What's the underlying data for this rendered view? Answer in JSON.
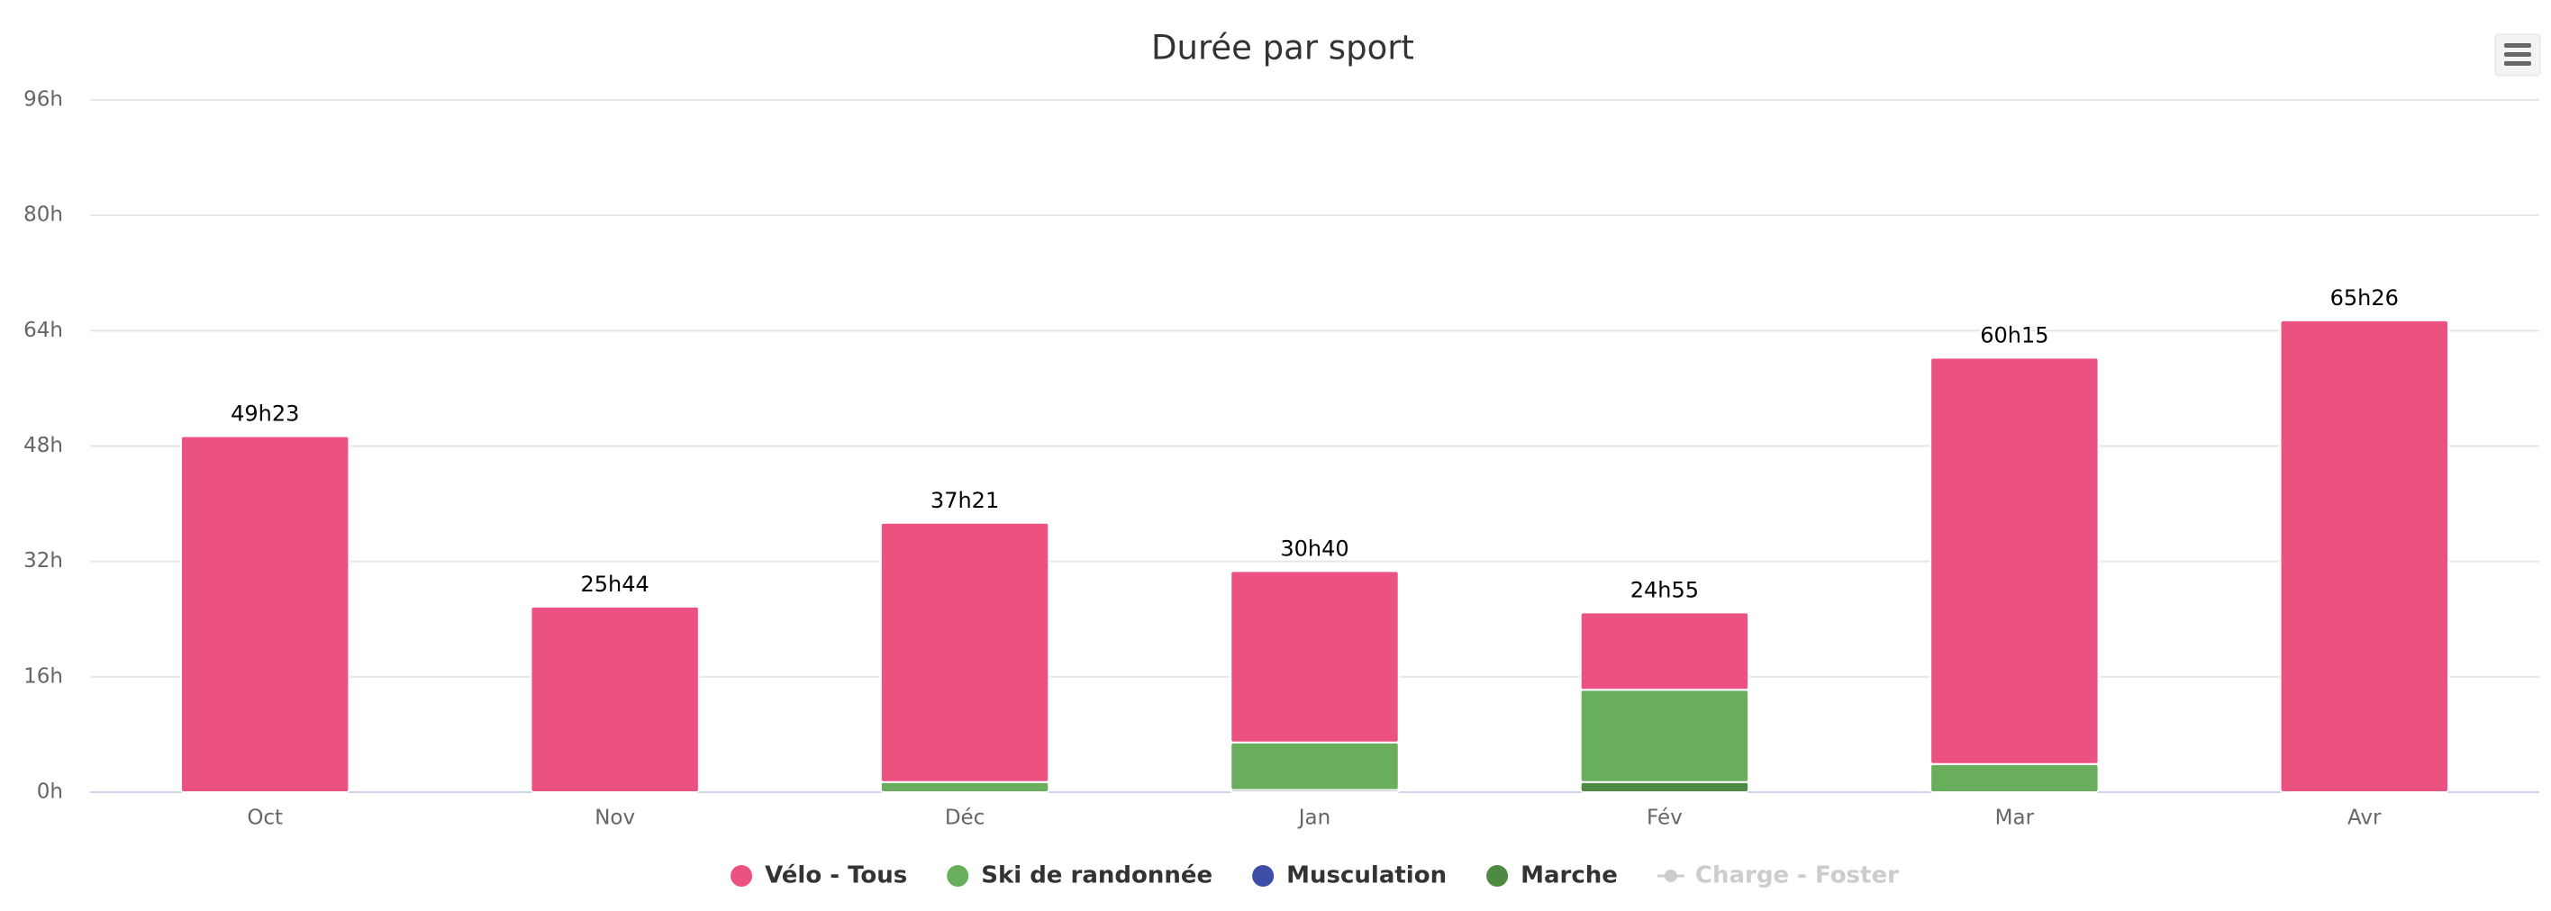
{
  "chart_data": {
    "type": "stacked_bar",
    "title": "Durée par sport",
    "categories": [
      "Oct",
      "Nov",
      "Déc",
      "Jan",
      "Fév",
      "Mar",
      "Avr"
    ],
    "series": [
      {
        "name": "Vélo - Tous",
        "color": "#eb5282",
        "values": [
          49.38,
          25.73,
          35.95,
          23.77,
          10.72,
          56.35,
          65.43
        ]
      },
      {
        "name": "Ski de randonnée",
        "color": "#68ae5c",
        "values": [
          0,
          0,
          1.4,
          6.6,
          12.8,
          3.9,
          0
        ]
      },
      {
        "name": "Musculation",
        "color": "#3e4ea8",
        "values": [
          0,
          0,
          0,
          0.3,
          0,
          0,
          0
        ]
      },
      {
        "name": "Marche",
        "color": "#4d8a42",
        "values": [
          0,
          0,
          0,
          0,
          1.4,
          0,
          0
        ]
      },
      {
        "name": "Charge - Foster",
        "color": "#cccccc",
        "visible": false,
        "values": [
          null,
          null,
          null,
          null,
          null,
          null,
          null
        ]
      }
    ],
    "totals": [
      49.38,
      25.73,
      37.35,
      30.67,
      24.92,
      60.25,
      65.43
    ],
    "total_labels": [
      "49h23",
      "25h44",
      "37h21",
      "30h40",
      "24h55",
      "60h15",
      "65h26"
    ],
    "ylim": [
      0,
      96
    ],
    "yticks": [
      {
        "value": 0,
        "label": "0h"
      },
      {
        "value": 16,
        "label": "16h"
      },
      {
        "value": 32,
        "label": "32h"
      },
      {
        "value": 48,
        "label": "48h"
      },
      {
        "value": 64,
        "label": "64h"
      },
      {
        "value": 80,
        "label": "80h"
      },
      {
        "value": 96,
        "label": "96h"
      }
    ],
    "grid": true,
    "legend": "bottom"
  }
}
